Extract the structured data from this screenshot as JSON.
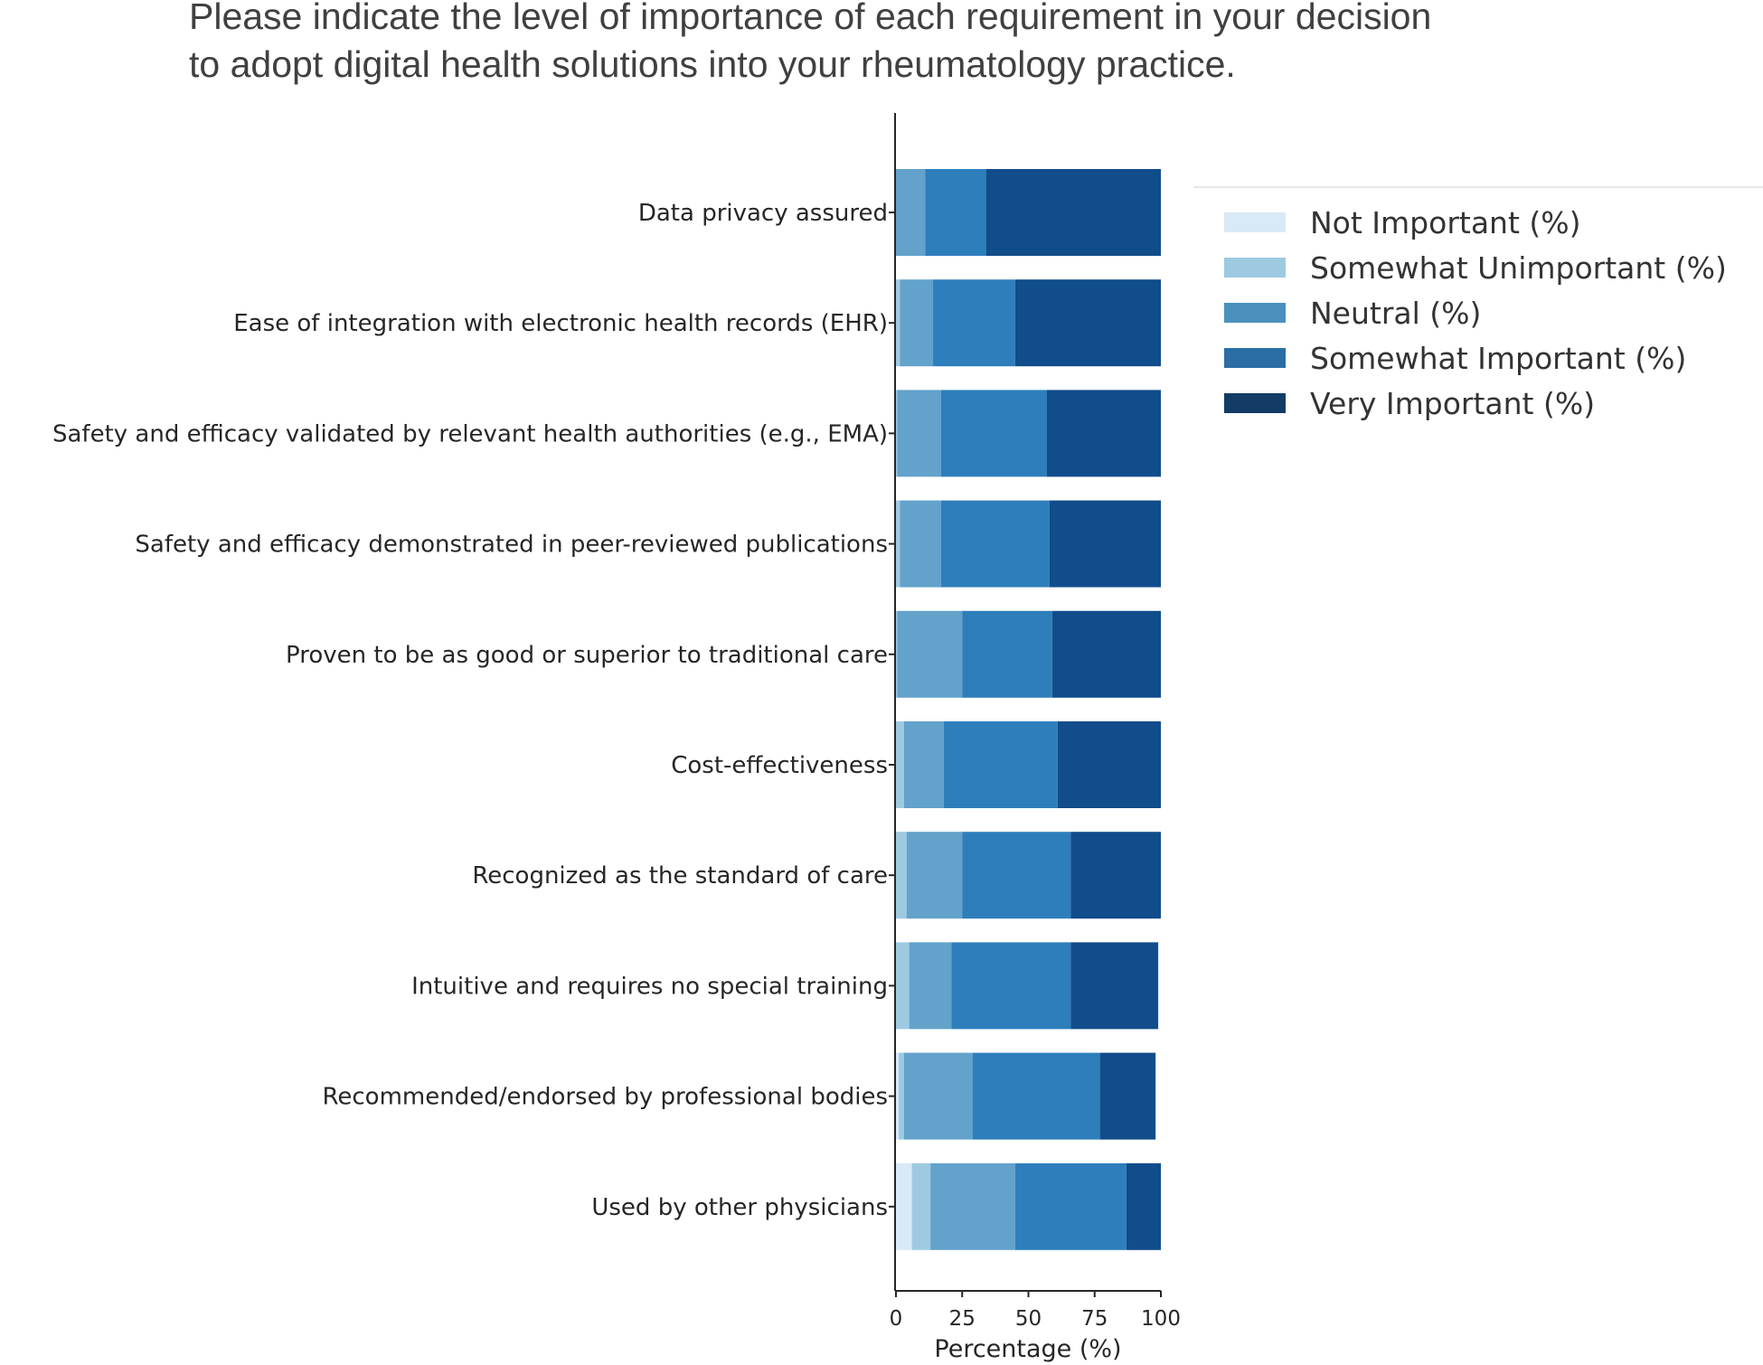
{
  "title": "Please indicate the level of importance of each requirement in your decision to adopt digital health solutions into your rheumatology practice.",
  "chart_data": {
    "type": "bar",
    "orientation": "horizontal",
    "stacked": true,
    "title": "Please indicate the level of importance of each requirement in your decision to adopt digital health solutions into your rheumatology practice.",
    "xlabel": "Percentage (%)",
    "ylabel": "",
    "xlim": [
      0,
      100
    ],
    "xticks": [
      "0",
      "25",
      "50",
      "75",
      "100"
    ],
    "grid": false,
    "legend_position": "upper-right-outside",
    "categories": [
      "Data privacy assured",
      "Ease of integration with electronic health records (EHR)",
      "Safety and efficacy validated by relevant health authorities (e.g., EMA)",
      "Safety and efficacy demonstrated in peer-reviewed publications",
      "Proven to be as good or superior to traditional care",
      "Cost-effectiveness",
      "Recognized as the standard of care",
      "Intuitive and requires no special training",
      "Recommended/endorsed by professional bodies",
      "Used by other physicians"
    ],
    "series": [
      {
        "name": "Not Important (%)",
        "legend_color": "#d9e9f7",
        "color": "#d9e9f7",
        "values": [
          0,
          0,
          0,
          0,
          0,
          0,
          0,
          0,
          1,
          6
        ]
      },
      {
        "name": "Somewhat Unimportant (%)",
        "legend_color": "#9ecae1",
        "color": "#9ecae1",
        "values": [
          0,
          1.5,
          0.5,
          1.5,
          0.5,
          3,
          4,
          5,
          2,
          7
        ]
      },
      {
        "name": "Neutral (%)",
        "legend_color": "#4a91bf",
        "color": "#62a2cb",
        "values": [
          11,
          12.5,
          16.5,
          15.5,
          24.5,
          15,
          21,
          16,
          26,
          32
        ]
      },
      {
        "name": "Somewhat Important (%)",
        "legend_color": "#2b6ea5",
        "color": "#2e7ebc",
        "values": [
          23,
          31,
          40,
          41,
          34,
          43,
          41,
          45,
          48,
          42
        ]
      },
      {
        "name": "Very Important (%)",
        "legend_color": "#123c65",
        "color": "#114c8b",
        "values": [
          66,
          55,
          43,
          42,
          41,
          39,
          34,
          33,
          21,
          13
        ]
      }
    ]
  }
}
